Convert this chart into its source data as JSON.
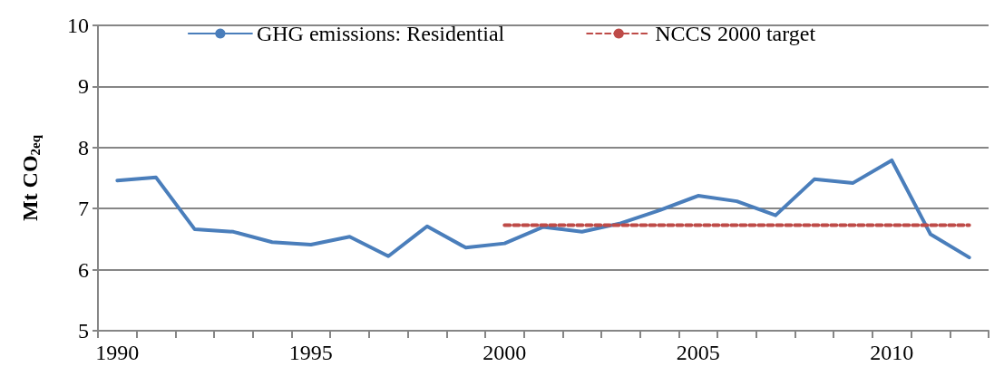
{
  "chart_data": {
    "type": "line",
    "ylabel": "Mt CO$_{2eq}$",
    "categories": [
      "1990",
      null,
      null,
      null,
      null,
      "1995",
      null,
      null,
      null,
      null,
      "2000",
      null,
      null,
      null,
      null,
      "2005",
      null,
      null,
      null,
      null,
      "2010",
      null,
      null
    ],
    "series": [
      {
        "name": "GHG emissions: Residential",
        "color": "#4a7ebb",
        "values": [
          7.46,
          7.51,
          6.66,
          6.62,
          6.45,
          6.41,
          6.54,
          6.22,
          6.71,
          6.36,
          6.43,
          6.7,
          6.62,
          6.76,
          6.97,
          7.21,
          7.12,
          6.89,
          7.48,
          7.42,
          7.79,
          6.58,
          6.2
        ]
      },
      {
        "name": "NCCS 2000 target",
        "color": "#be4b48",
        "line_style": "dashed",
        "values": [
          null,
          null,
          null,
          null,
          null,
          null,
          null,
          null,
          null,
          null,
          6.73,
          6.73,
          6.73,
          6.73,
          6.73,
          6.73,
          6.73,
          6.73,
          6.73,
          6.73,
          6.73,
          6.73,
          6.73
        ]
      }
    ],
    "ylim": [
      5,
      10
    ],
    "yticks": [
      5,
      6,
      7,
      8,
      9,
      10
    ],
    "grid": "y",
    "legend": "top",
    "marker": "none",
    "line_style": "solid"
  }
}
